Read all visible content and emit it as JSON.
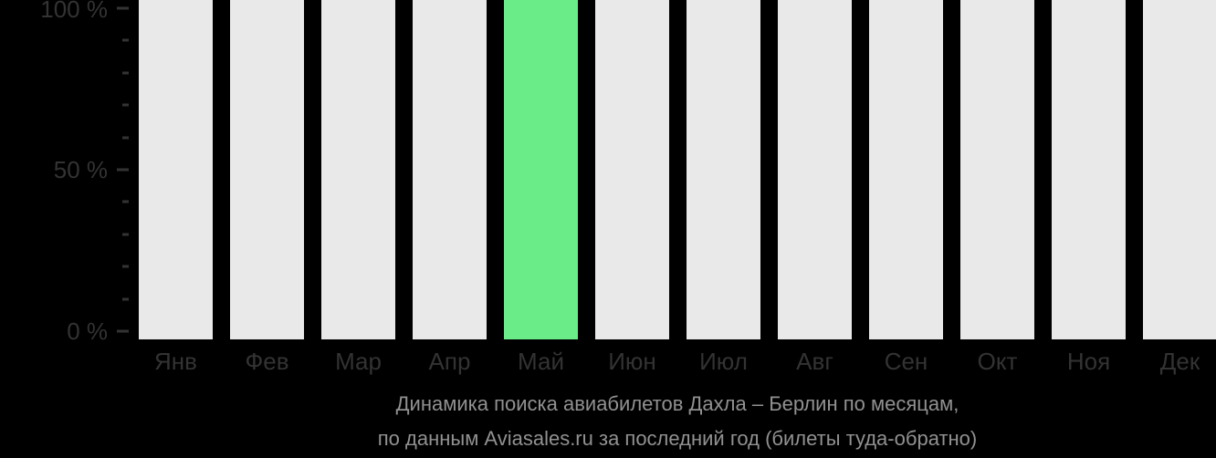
{
  "chart_data": {
    "type": "bar",
    "title": "Динамика поиска авиабилетов Дахла – Берлин по месяцам, по данным Aviasales.ru за последний год (билеты туда-обратно)",
    "categories": [
      "Янв",
      "Фев",
      "Мар",
      "Апр",
      "Май",
      "Июн",
      "Июл",
      "Авг",
      "Сен",
      "Окт",
      "Ноя",
      "Дек"
    ],
    "values": [
      100,
      100,
      100,
      100,
      100,
      100,
      100,
      100,
      100,
      100,
      100,
      100
    ],
    "highlighted_category": "Май",
    "xlabel": "",
    "ylabel": "",
    "ylim": [
      0,
      100
    ],
    "ytick_labels": [
      "100 %",
      "50 %",
      "0 %"
    ],
    "minor_tick_step_percent": 10,
    "grid": false,
    "legend_position": "none",
    "colors": {
      "background": "#000000",
      "bar": "#e9e9e9",
      "highlight": "#6aed88",
      "axis_text": "#333333",
      "caption_text": "#919191"
    }
  },
  "caption": {
    "line1": "Динамика поиска авиабилетов Дахла – Берлин по месяцам,",
    "line2": "по данным Aviasales.ru за последний год (билеты туда-обратно)"
  }
}
